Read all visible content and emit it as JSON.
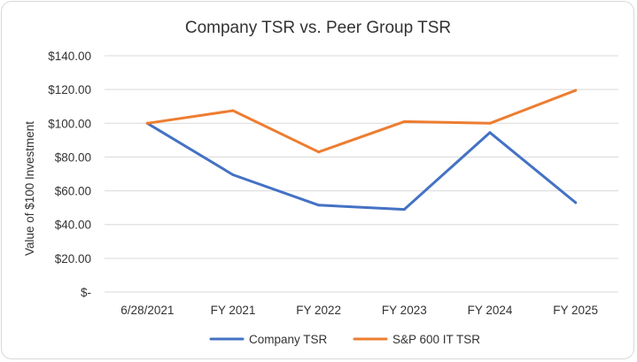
{
  "chart_data": {
    "type": "line",
    "title": "Company TSR vs. Peer Group TSR",
    "xlabel": "",
    "ylabel": "Value of $100 Investment",
    "categories": [
      "6/28/2021",
      "FY 2021",
      "FY 2022",
      "FY 2023",
      "FY 2024",
      "FY 2025"
    ],
    "ylim": [
      0,
      140
    ],
    "yticks": [
      {
        "value": 140,
        "label": "$140.00"
      },
      {
        "value": 120,
        "label": "$120.00"
      },
      {
        "value": 100,
        "label": "$100.00"
      },
      {
        "value": 80,
        "label": "$80.00"
      },
      {
        "value": 60,
        "label": "$60.00"
      },
      {
        "value": 40,
        "label": "$40.00"
      },
      {
        "value": 20,
        "label": "$20.00"
      },
      {
        "value": 0,
        "label": "$-"
      }
    ],
    "grid": true,
    "legend_position": "bottom",
    "series": [
      {
        "name": "Company TSR",
        "color": "#4472c4",
        "values": [
          100,
          69.5,
          51.5,
          49,
          94.5,
          53
        ]
      },
      {
        "name": "S&P 600 IT TSR",
        "color": "#ed7d31",
        "values": [
          100,
          107.5,
          83,
          101,
          100,
          119.5
        ]
      }
    ]
  }
}
